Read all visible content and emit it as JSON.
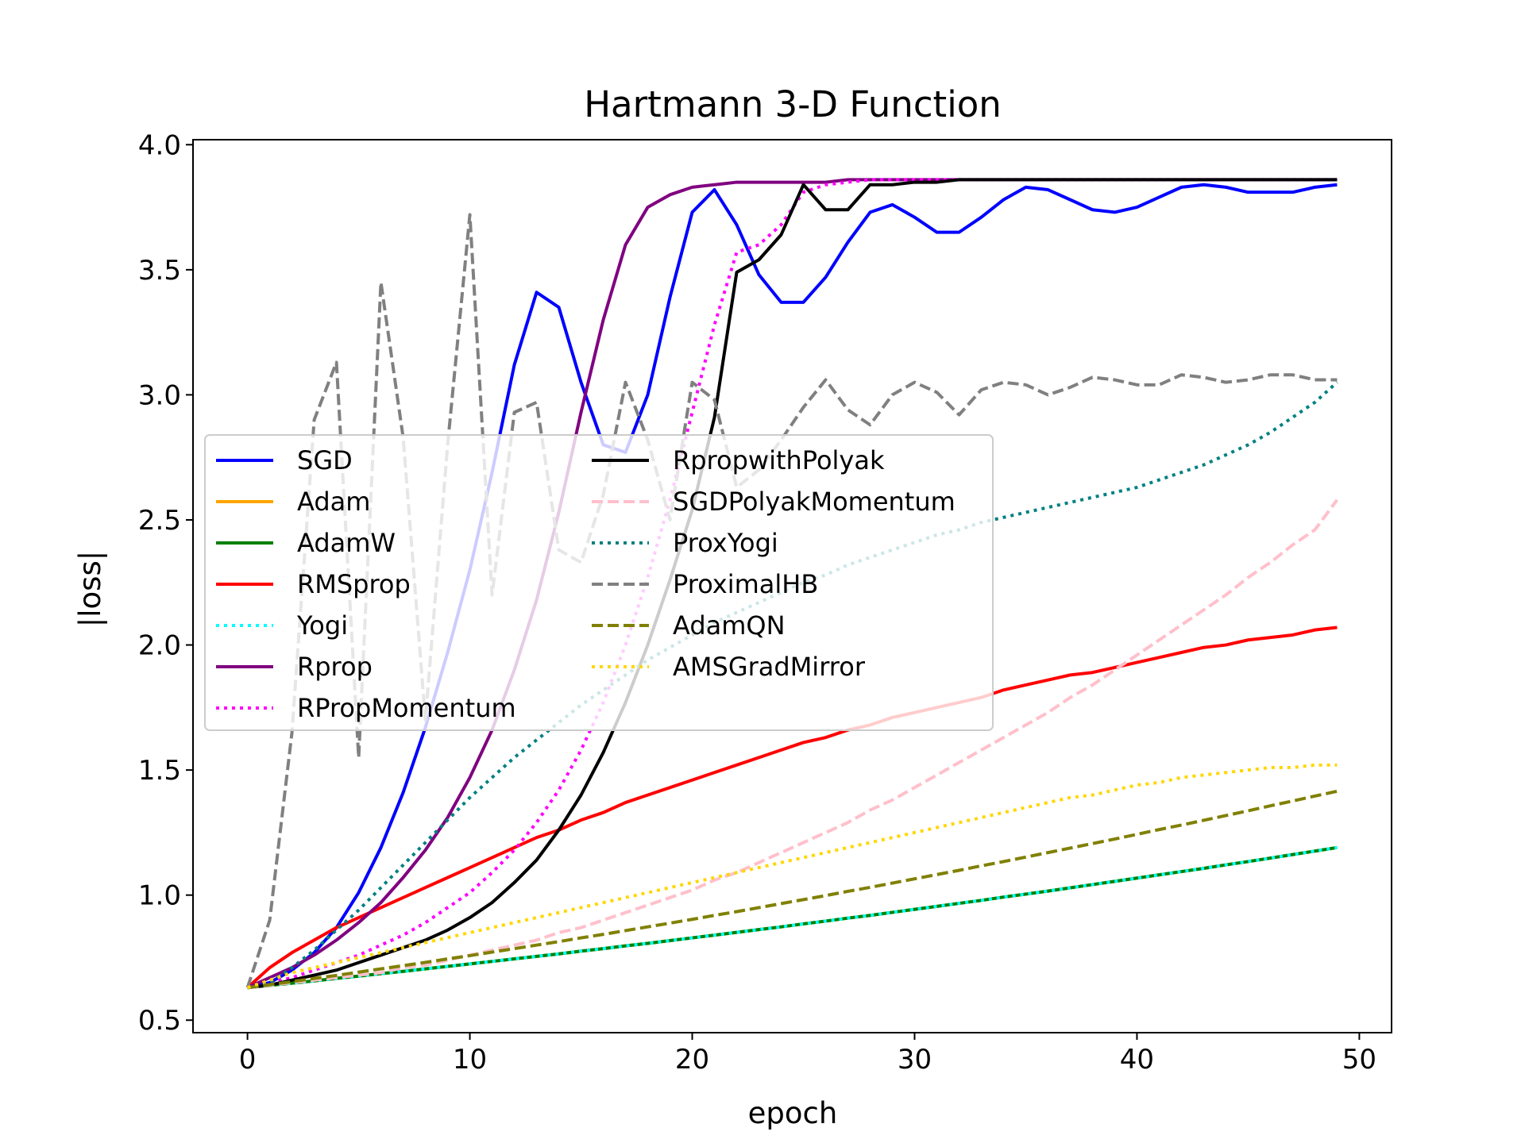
{
  "chart_data": {
    "type": "line",
    "title": "Hartmann 3-D Function",
    "xlabel": "epoch",
    "ylabel": "|loss|",
    "xlim": [
      -2.45,
      51.45
    ],
    "ylim": [
      0.45,
      4.02
    ],
    "xticks": [
      0,
      10,
      20,
      30,
      40,
      50
    ],
    "yticks": [
      0.5,
      1.0,
      1.5,
      2.0,
      2.5,
      3.0,
      3.5,
      4.0
    ],
    "xtick_labels": [
      "0",
      "10",
      "20",
      "30",
      "40",
      "50"
    ],
    "ytick_labels": [
      "0.5",
      "1.0",
      "1.5",
      "2.0",
      "2.5",
      "3.0",
      "3.5",
      "4.0"
    ],
    "grid": false,
    "legend": {
      "placement": "center-left",
      "columns": 2
    },
    "series": [
      {
        "name": "SGD",
        "color": "#0000ff",
        "style": "solid",
        "values": [
          0.63,
          0.65,
          0.7,
          0.77,
          0.87,
          1.01,
          1.19,
          1.41,
          1.67,
          1.97,
          2.3,
          2.69,
          3.12,
          3.41,
          3.35,
          3.05,
          2.8,
          2.77,
          3.0,
          3.39,
          3.73,
          3.82,
          3.68,
          3.48,
          3.37,
          3.37,
          3.47,
          3.61,
          3.73,
          3.76,
          3.71,
          3.65,
          3.65,
          3.71,
          3.78,
          3.83,
          3.82,
          3.78,
          3.74,
          3.73,
          3.75,
          3.79,
          3.83,
          3.84,
          3.83,
          3.81,
          3.81,
          3.81,
          3.83,
          3.84
        ]
      },
      {
        "name": "Adam",
        "color": "#ffa500",
        "style": "solid",
        "values": [
          0.63,
          0.639,
          0.648,
          0.657,
          0.667,
          0.676,
          0.686,
          0.695,
          0.705,
          0.715,
          0.725,
          0.735,
          0.745,
          0.755,
          0.765,
          0.776,
          0.786,
          0.797,
          0.807,
          0.818,
          0.829,
          0.84,
          0.851,
          0.862,
          0.873,
          0.885,
          0.896,
          0.908,
          0.919,
          0.931,
          0.943,
          0.955,
          0.967,
          0.979,
          0.992,
          1.004,
          1.016,
          1.029,
          1.042,
          1.055,
          1.068,
          1.081,
          1.094,
          1.107,
          1.121,
          1.134,
          1.148,
          1.162,
          1.176,
          1.19
        ]
      },
      {
        "name": "AdamW",
        "color": "#008000",
        "style": "solid",
        "values": [
          0.63,
          0.639,
          0.648,
          0.657,
          0.667,
          0.676,
          0.686,
          0.695,
          0.705,
          0.715,
          0.725,
          0.735,
          0.745,
          0.755,
          0.765,
          0.776,
          0.786,
          0.797,
          0.807,
          0.818,
          0.829,
          0.84,
          0.851,
          0.862,
          0.873,
          0.885,
          0.896,
          0.908,
          0.919,
          0.931,
          0.943,
          0.955,
          0.967,
          0.979,
          0.992,
          1.004,
          1.016,
          1.029,
          1.042,
          1.055,
          1.068,
          1.081,
          1.094,
          1.107,
          1.121,
          1.134,
          1.148,
          1.162,
          1.176,
          1.19
        ]
      },
      {
        "name": "RMSprop",
        "color": "#ff0000",
        "style": "solid",
        "values": [
          0.63,
          0.71,
          0.77,
          0.82,
          0.87,
          0.91,
          0.95,
          0.99,
          1.03,
          1.07,
          1.11,
          1.15,
          1.19,
          1.23,
          1.26,
          1.3,
          1.33,
          1.37,
          1.4,
          1.43,
          1.46,
          1.49,
          1.52,
          1.55,
          1.58,
          1.61,
          1.63,
          1.66,
          1.68,
          1.71,
          1.73,
          1.75,
          1.77,
          1.79,
          1.82,
          1.84,
          1.86,
          1.88,
          1.89,
          1.91,
          1.93,
          1.95,
          1.97,
          1.99,
          2.0,
          2.02,
          2.03,
          2.04,
          2.06,
          2.07
        ]
      },
      {
        "name": "Yogi",
        "color": "#00ffff",
        "style": "dotted",
        "values": [
          0.63,
          0.639,
          0.648,
          0.657,
          0.667,
          0.676,
          0.686,
          0.695,
          0.705,
          0.715,
          0.725,
          0.735,
          0.745,
          0.755,
          0.765,
          0.776,
          0.786,
          0.797,
          0.807,
          0.818,
          0.829,
          0.84,
          0.851,
          0.862,
          0.873,
          0.885,
          0.896,
          0.908,
          0.919,
          0.931,
          0.943,
          0.955,
          0.967,
          0.979,
          0.992,
          1.004,
          1.016,
          1.029,
          1.042,
          1.055,
          1.068,
          1.081,
          1.094,
          1.107,
          1.121,
          1.134,
          1.148,
          1.162,
          1.176,
          1.19
        ]
      },
      {
        "name": "Rprop",
        "color": "#800080",
        "style": "solid",
        "values": [
          0.63,
          0.67,
          0.71,
          0.76,
          0.82,
          0.89,
          0.97,
          1.07,
          1.18,
          1.31,
          1.47,
          1.66,
          1.9,
          2.18,
          2.53,
          2.93,
          3.3,
          3.6,
          3.75,
          3.8,
          3.83,
          3.84,
          3.85,
          3.85,
          3.85,
          3.85,
          3.85,
          3.86,
          3.86,
          3.86,
          3.86,
          3.86,
          3.86,
          3.86,
          3.86,
          3.86,
          3.86,
          3.86,
          3.86,
          3.86,
          3.86,
          3.86,
          3.86,
          3.86,
          3.86,
          3.86,
          3.86,
          3.86,
          3.86,
          3.86
        ]
      },
      {
        "name": "RPropMomentum",
        "color": "#ff00ff",
        "style": "dotted",
        "values": [
          0.63,
          0.65,
          0.67,
          0.7,
          0.73,
          0.76,
          0.8,
          0.84,
          0.89,
          0.95,
          1.01,
          1.09,
          1.18,
          1.29,
          1.42,
          1.58,
          1.77,
          2.0,
          2.27,
          2.58,
          2.93,
          3.28,
          3.57,
          3.6,
          3.68,
          3.81,
          3.84,
          3.85,
          3.86,
          3.86,
          3.86,
          3.86,
          3.86,
          3.86,
          3.86,
          3.86,
          3.86,
          3.86,
          3.86,
          3.86,
          3.86,
          3.86,
          3.86,
          3.86,
          3.86,
          3.86,
          3.86,
          3.86,
          3.86,
          3.86
        ]
      },
      {
        "name": "RpropwithPolyak",
        "color": "#000000",
        "style": "solid",
        "values": [
          0.63,
          0.64,
          0.66,
          0.68,
          0.7,
          0.73,
          0.76,
          0.79,
          0.82,
          0.86,
          0.91,
          0.97,
          1.05,
          1.14,
          1.26,
          1.4,
          1.57,
          1.77,
          2.0,
          2.26,
          2.54,
          2.91,
          3.49,
          3.54,
          3.64,
          3.84,
          3.74,
          3.74,
          3.84,
          3.84,
          3.85,
          3.85,
          3.86,
          3.86,
          3.86,
          3.86,
          3.86,
          3.86,
          3.86,
          3.86,
          3.86,
          3.86,
          3.86,
          3.86,
          3.86,
          3.86,
          3.86,
          3.86,
          3.86,
          3.86
        ]
      },
      {
        "name": "SGDPolyakMomentum",
        "color": "#ffc0cb",
        "style": "dashed",
        "values": [
          0.63,
          0.64,
          0.65,
          0.66,
          0.67,
          0.68,
          0.69,
          0.71,
          0.72,
          0.74,
          0.76,
          0.78,
          0.8,
          0.82,
          0.85,
          0.87,
          0.9,
          0.93,
          0.96,
          0.99,
          1.02,
          1.06,
          1.09,
          1.13,
          1.17,
          1.21,
          1.25,
          1.29,
          1.34,
          1.38,
          1.43,
          1.48,
          1.53,
          1.58,
          1.63,
          1.68,
          1.73,
          1.79,
          1.84,
          1.9,
          1.96,
          2.02,
          2.08,
          2.14,
          2.2,
          2.27,
          2.33,
          2.4,
          2.46,
          2.58
        ]
      },
      {
        "name": "ProxYogi",
        "color": "#008080",
        "style": "dotted",
        "values": [
          0.63,
          0.65,
          0.71,
          0.78,
          0.86,
          0.94,
          1.03,
          1.12,
          1.21,
          1.3,
          1.39,
          1.47,
          1.55,
          1.62,
          1.69,
          1.76,
          1.82,
          1.88,
          1.94,
          1.99,
          2.04,
          2.09,
          2.13,
          2.17,
          2.21,
          2.25,
          2.28,
          2.32,
          2.35,
          2.38,
          2.41,
          2.44,
          2.46,
          2.49,
          2.51,
          2.53,
          2.55,
          2.57,
          2.59,
          2.61,
          2.63,
          2.66,
          2.69,
          2.72,
          2.76,
          2.8,
          2.85,
          2.91,
          2.97,
          3.05
        ]
      },
      {
        "name": "ProximalHB",
        "color": "#808080",
        "style": "dashed",
        "values": [
          0.63,
          0.9,
          1.65,
          2.9,
          3.13,
          1.55,
          3.45,
          2.83,
          1.7,
          2.8,
          3.72,
          2.2,
          2.93,
          2.97,
          2.38,
          2.33,
          2.6,
          3.05,
          2.82,
          2.5,
          3.05,
          2.98,
          2.63,
          2.7,
          2.82,
          2.95,
          3.06,
          2.94,
          2.88,
          3.0,
          3.05,
          3.01,
          2.92,
          3.02,
          3.05,
          3.04,
          3.0,
          3.03,
          3.07,
          3.06,
          3.04,
          3.04,
          3.08,
          3.07,
          3.05,
          3.06,
          3.08,
          3.08,
          3.06,
          3.06
        ]
      },
      {
        "name": "AdamQN",
        "color": "#808000",
        "style": "dashed",
        "values": [
          0.63,
          0.642,
          0.654,
          0.667,
          0.679,
          0.692,
          0.705,
          0.718,
          0.731,
          0.745,
          0.758,
          0.772,
          0.786,
          0.8,
          0.814,
          0.829,
          0.843,
          0.858,
          0.873,
          0.888,
          0.903,
          0.919,
          0.934,
          0.95,
          0.966,
          0.982,
          0.998,
          1.015,
          1.031,
          1.048,
          1.065,
          1.082,
          1.099,
          1.117,
          1.134,
          1.152,
          1.17,
          1.188,
          1.206,
          1.224,
          1.243,
          1.262,
          1.28,
          1.299,
          1.318,
          1.337,
          1.357,
          1.376,
          1.396,
          1.415
        ]
      },
      {
        "name": "AMSGradMirror",
        "color": "#ffd700",
        "style": "dotted",
        "values": [
          0.63,
          0.66,
          0.69,
          0.71,
          0.73,
          0.75,
          0.77,
          0.79,
          0.81,
          0.83,
          0.85,
          0.87,
          0.89,
          0.91,
          0.93,
          0.95,
          0.97,
          0.99,
          1.01,
          1.03,
          1.05,
          1.07,
          1.09,
          1.11,
          1.13,
          1.15,
          1.17,
          1.19,
          1.21,
          1.23,
          1.25,
          1.27,
          1.29,
          1.31,
          1.33,
          1.35,
          1.37,
          1.39,
          1.4,
          1.42,
          1.44,
          1.45,
          1.47,
          1.48,
          1.49,
          1.5,
          1.51,
          1.51,
          1.52,
          1.52
        ]
      }
    ]
  }
}
